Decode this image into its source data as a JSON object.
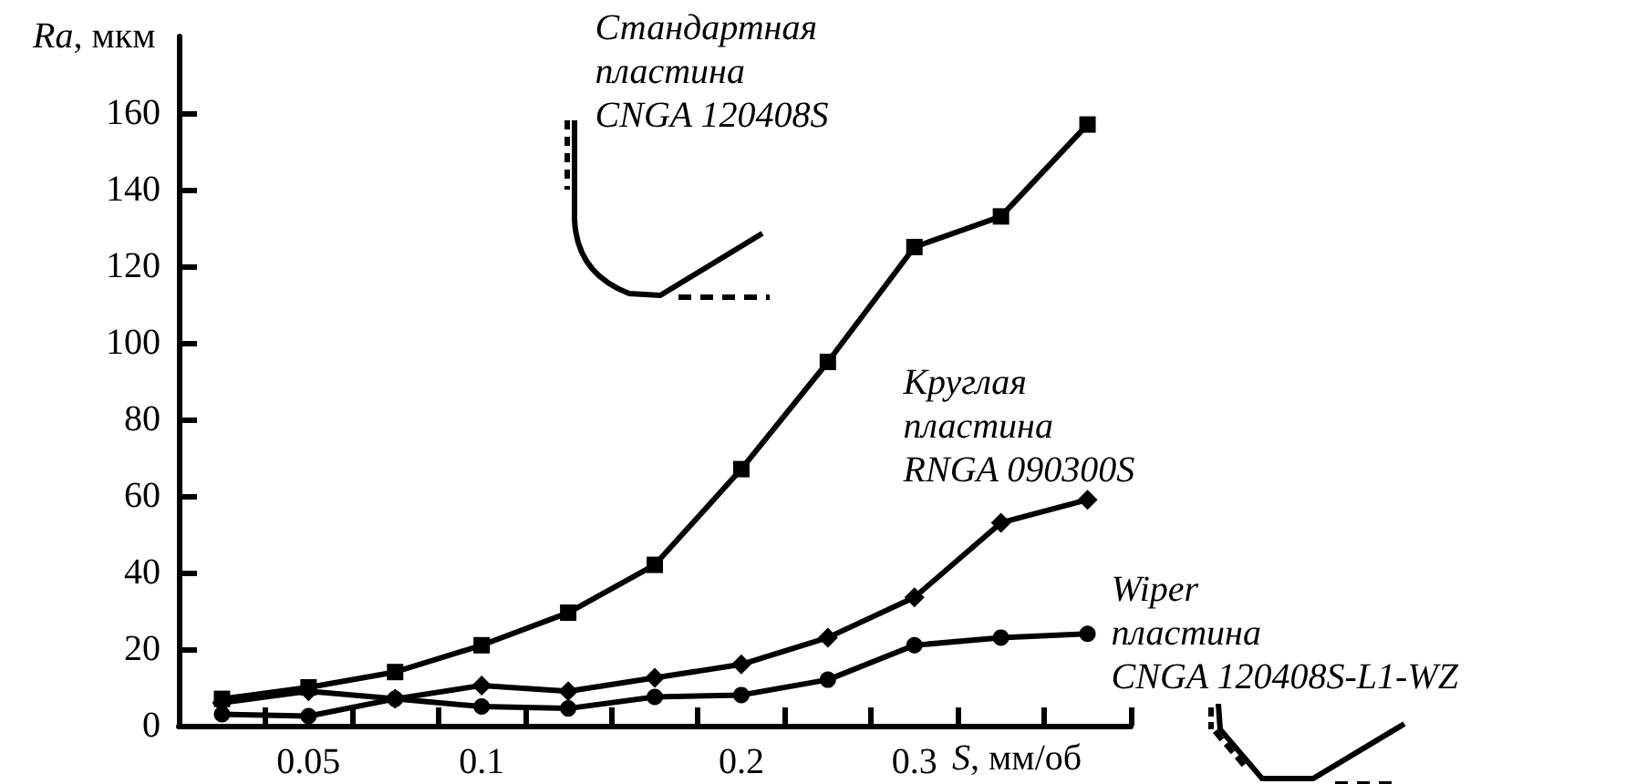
{
  "chart_data": {
    "type": "line",
    "xlabel": "S, мм/об",
    "ylabel": "Ra, мкм",
    "categories": [
      null,
      "0.05",
      null,
      "0.1",
      null,
      null,
      "0.2",
      null,
      "0.3",
      null,
      null
    ],
    "ylim": [
      0,
      180
    ],
    "yticks": [
      0,
      20,
      40,
      60,
      80,
      100,
      120,
      140,
      160
    ],
    "series": [
      {
        "name": "Стандартная пластина CNGA 120408S",
        "color": "#000000",
        "marker": "square",
        "values": [
          7,
          10,
          14,
          21,
          29.5,
          42,
          67,
          95,
          125,
          133,
          157
        ]
      },
      {
        "name": "Круглая пластина RNGA 090300S",
        "color": "#000000",
        "marker": "diamond",
        "values": [
          6,
          9,
          7,
          10.5,
          9,
          12.5,
          16,
          23,
          33.5,
          53,
          59
        ]
      },
      {
        "name": "Wiper пластина CNGA 120408S-L1-WZ",
        "color": "#000000",
        "marker": "circle",
        "values": [
          3,
          2.5,
          7,
          5,
          4.5,
          7.5,
          8,
          12,
          21,
          23,
          24
        ]
      }
    ],
    "line_style": "solid",
    "grid": false,
    "legend": false
  }
}
